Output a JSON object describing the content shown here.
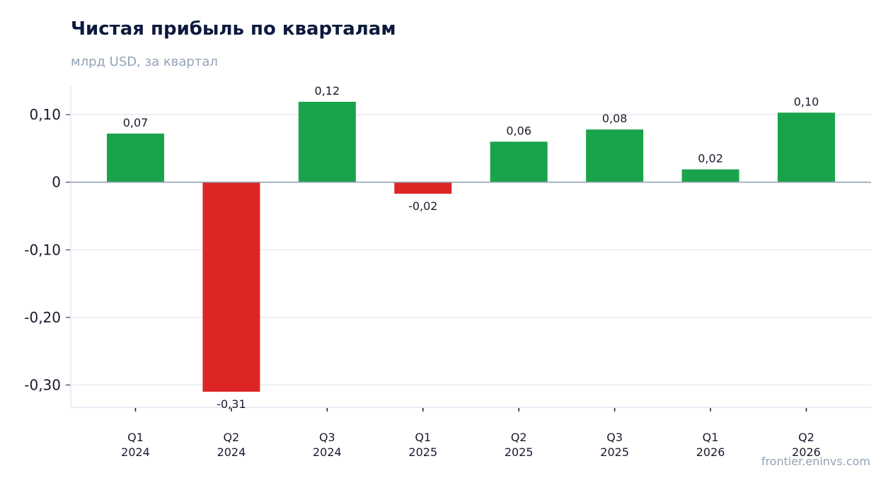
{
  "title": "Чистая прибыль по кварталам",
  "subtitle": "млрд USD, за квартал",
  "watermark": "frontier.eninvs.com",
  "colors": {
    "positive": "#19a34a",
    "negative": "#dc2626",
    "grid": "#e2e6f0",
    "zero_line": "#94a3b8",
    "axis": "#e2e6f0",
    "text": "#1a1a2e"
  },
  "chart_data": {
    "type": "bar",
    "title": "Чистая прибыль по кварталам",
    "subtitle": "млрд USD, за квартал",
    "categories": [
      [
        "Q1",
        "2024"
      ],
      [
        "Q2",
        "2024"
      ],
      [
        "Q3",
        "2024"
      ],
      [
        "Q1",
        "2025"
      ],
      [
        "Q2",
        "2025"
      ],
      [
        "Q3",
        "2025"
      ],
      [
        "Q1",
        "2026"
      ],
      [
        "Q2",
        "2026"
      ]
    ],
    "values": [
      0.072,
      -0.31,
      0.119,
      -0.017,
      0.06,
      0.078,
      0.019,
      0.103
    ],
    "value_labels": [
      "0,07",
      "-0,31",
      "0,12",
      "-0,02",
      "0,06",
      "0,08",
      "0,02",
      "0,10"
    ],
    "yticks": [
      0.1,
      0,
      -0.1,
      -0.2,
      -0.3
    ],
    "ytick_labels": [
      "0,10",
      "0",
      "-0,10",
      "-0,20",
      "-0,30"
    ],
    "ylim": [
      -0.333,
      0.142
    ],
    "grid": true,
    "legend": false
  }
}
